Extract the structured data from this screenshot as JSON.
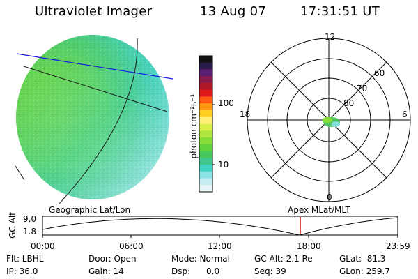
{
  "header": {
    "instrument": "Ultraviolet Imager",
    "date": "13 Aug 07",
    "time": "17:31:51 UT"
  },
  "colorbar": {
    "unit_label": "photon cm⁻²s⁻¹",
    "ticks": [
      "100",
      "10"
    ],
    "colors": [
      "#101010",
      "#2a1a4a",
      "#5a1f6e",
      "#8a1a4a",
      "#b0182a",
      "#e01a1a",
      "#ff5a10",
      "#ff9a10",
      "#ffd020",
      "#fff07a",
      "#d8f048",
      "#b0e840",
      "#86dd38",
      "#60d23c",
      "#46c85a",
      "#3ec88e",
      "#40d4bf",
      "#8ae2e4",
      "#c6eef0",
      "#e9f6f7"
    ]
  },
  "polar_plot": {
    "mlt_labels": {
      "top": "12",
      "left": "18",
      "right": "6",
      "bottom": "0"
    },
    "lat_labels": [
      "60",
      "70",
      "80"
    ]
  },
  "map_labels": {
    "geographic": "Geographic Lat/Lon",
    "apex": "Apex MLat/MLT"
  },
  "altitude_strip": {
    "y_axis_label": "GC Alt",
    "y_ticks": [
      "9.0",
      "1.8"
    ],
    "time_ticks": [
      "00:00",
      "06:00",
      "12:00",
      "18:00",
      "23:59"
    ]
  },
  "status": {
    "filter": "Flt: LBHL",
    "ip": "IP: 36.0",
    "door": "Door: Open",
    "gain": "Gain: 14",
    "mode": "Mode: Normal",
    "dsp": "Dsp:      0.0",
    "gc_alt": "GC Alt: 2.1 Re",
    "seq": "Seq: 39",
    "glat": "GLat:  81.3",
    "glon": "GLon: 259.7"
  }
}
